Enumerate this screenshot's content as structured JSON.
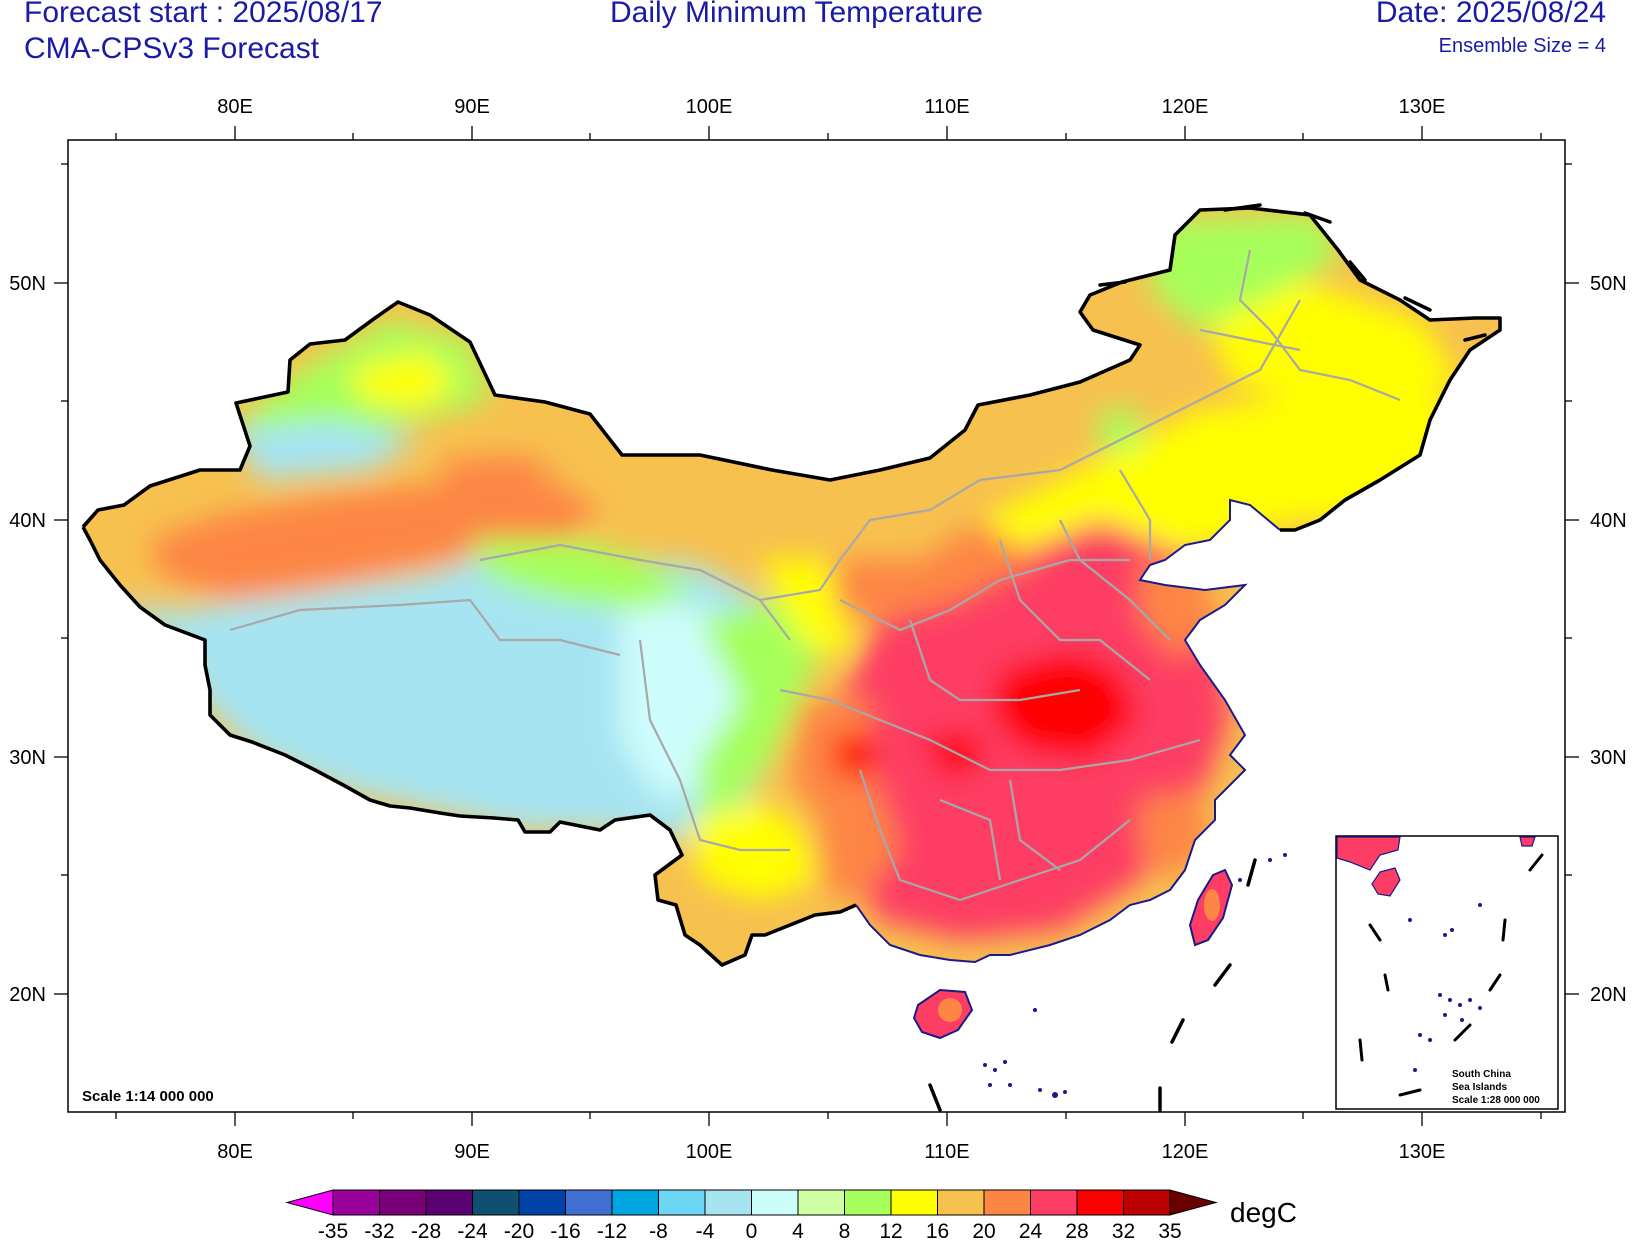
{
  "header": {
    "forecast_start": "Forecast start : 2025/08/17",
    "model": "CMA-CPSv3 Forecast",
    "title": "Daily Minimum Temperature",
    "date": "Date: 2025/08/24",
    "ensemble": "Ensemble Size = 4"
  },
  "map": {
    "lon_labels": [
      "80E",
      "90E",
      "100E",
      "110E",
      "120E",
      "130E"
    ],
    "lat_labels": [
      "50N",
      "40N",
      "30N",
      "20N"
    ],
    "scale_main": "Scale 1:14 000 000",
    "inset": {
      "line1": "South China",
      "line2": "Sea Islands",
      "line3": "Scale 1:28 000 000"
    }
  },
  "colorbar": {
    "unit": "degC",
    "labels": [
      "-35",
      "-32",
      "-28",
      "-24",
      "-20",
      "-16",
      "-12",
      "-8",
      "-4",
      "0",
      "4",
      "8",
      "12",
      "16",
      "20",
      "24",
      "28",
      "32",
      "35"
    ],
    "colors": [
      "#ff00ff",
      "#9a009a",
      "#7a007a",
      "#5a0070",
      "#0f4f6f",
      "#0043a8",
      "#3f6fd0",
      "#00a4e0",
      "#6cd6f4",
      "#a6e4f2",
      "#cdfdfb",
      "#cfffa4",
      "#a6ff5a",
      "#ffff00",
      "#f7c14f",
      "#fd8645",
      "#fd3d64",
      "#ff0000",
      "#bd0000",
      "#6b0000"
    ]
  }
}
